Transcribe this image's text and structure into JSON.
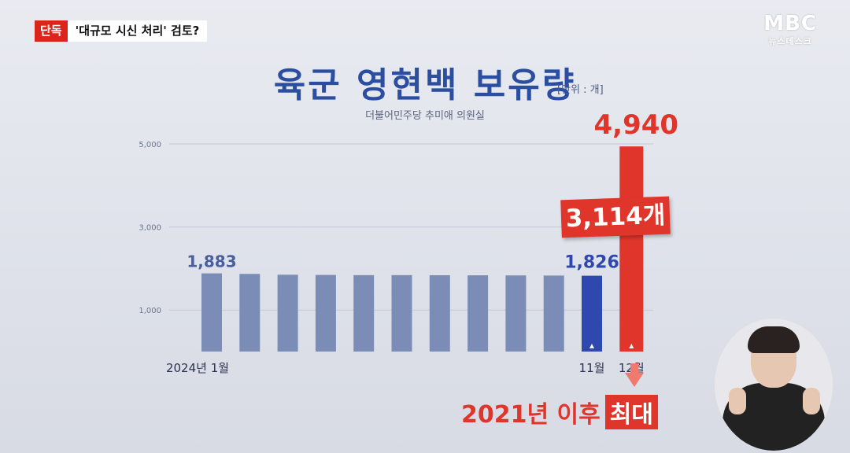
{
  "header": {
    "tag": "단독",
    "headline": "'대규모 시신 처리' 검토?"
  },
  "logo": {
    "main": "MBC",
    "sub": "뉴스데스크"
  },
  "title": "육군 영현백 보유량",
  "unit": "[단위 : 개]",
  "source": "더불어민주당 추미애 의원실",
  "callout": "3,114개",
  "note": {
    "text": "2021년 이후",
    "highlight": "최대"
  },
  "colors": {
    "bar": "#7b8db6",
    "highlight_bar": "#2f48b0",
    "accent": "#e0352b",
    "title": "#2c4ea0"
  },
  "chart_data": {
    "type": "bar",
    "categories": [
      "2024년 1월",
      "",
      "",
      "",
      "",
      "",
      "",
      "",
      "",
      "",
      "11월",
      "12월"
    ],
    "values": [
      1883,
      1870,
      1850,
      1845,
      1840,
      1840,
      1838,
      1836,
      1833,
      1830,
      1826,
      4940
    ],
    "data_labels": [
      "1,883",
      "",
      "",
      "",
      "",
      "",
      "",
      "",
      "",
      "",
      "1,826",
      "4,940"
    ],
    "yticks": [
      "1,000",
      "3,000",
      "5,000"
    ],
    "ylim": [
      0,
      5000
    ],
    "grid": true
  }
}
